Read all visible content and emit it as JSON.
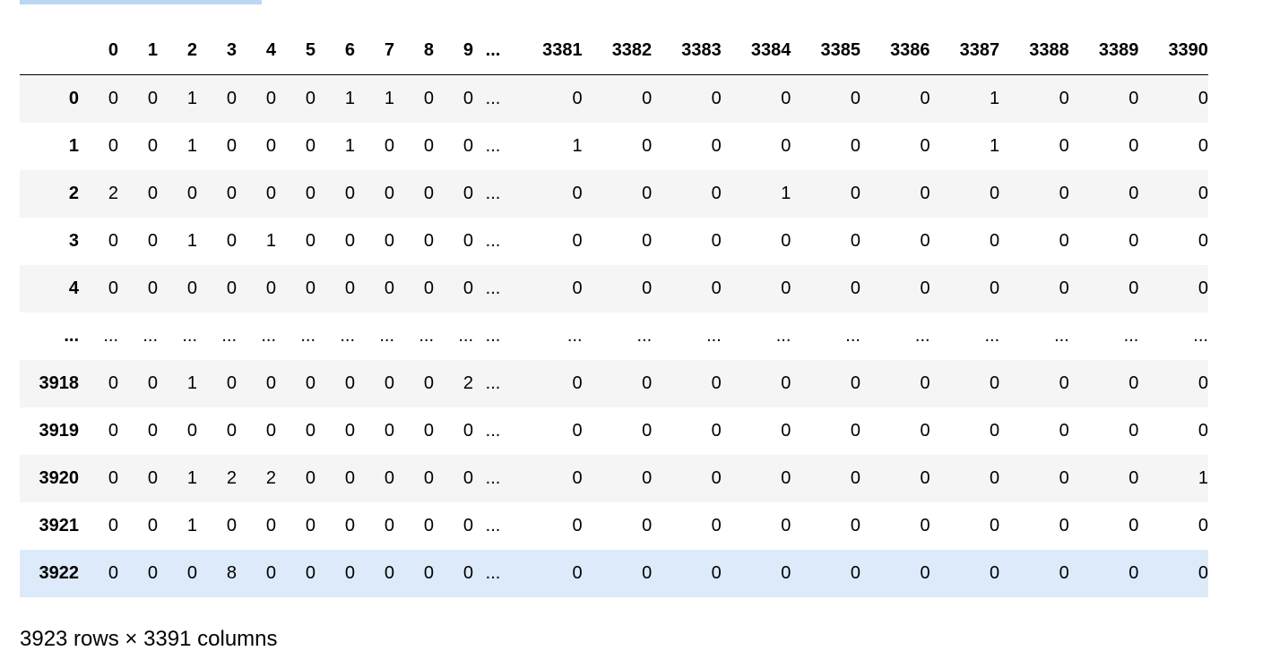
{
  "table": {
    "columns": [
      "0",
      "1",
      "2",
      "3",
      "4",
      "5",
      "6",
      "7",
      "8",
      "9",
      "...",
      "3381",
      "3382",
      "3383",
      "3384",
      "3385",
      "3386",
      "3387",
      "3388",
      "3389",
      "3390"
    ],
    "rows": [
      {
        "index": "0",
        "values": [
          "0",
          "0",
          "1",
          "0",
          "0",
          "0",
          "1",
          "1",
          "0",
          "0",
          "...",
          "0",
          "0",
          "0",
          "0",
          "0",
          "0",
          "1",
          "0",
          "0",
          "0"
        ]
      },
      {
        "index": "1",
        "values": [
          "0",
          "0",
          "1",
          "0",
          "0",
          "0",
          "1",
          "0",
          "0",
          "0",
          "...",
          "1",
          "0",
          "0",
          "0",
          "0",
          "0",
          "1",
          "0",
          "0",
          "0"
        ]
      },
      {
        "index": "2",
        "values": [
          "2",
          "0",
          "0",
          "0",
          "0",
          "0",
          "0",
          "0",
          "0",
          "0",
          "...",
          "0",
          "0",
          "0",
          "1",
          "0",
          "0",
          "0",
          "0",
          "0",
          "0"
        ]
      },
      {
        "index": "3",
        "values": [
          "0",
          "0",
          "1",
          "0",
          "1",
          "0",
          "0",
          "0",
          "0",
          "0",
          "...",
          "0",
          "0",
          "0",
          "0",
          "0",
          "0",
          "0",
          "0",
          "0",
          "0"
        ]
      },
      {
        "index": "4",
        "values": [
          "0",
          "0",
          "0",
          "0",
          "0",
          "0",
          "0",
          "0",
          "0",
          "0",
          "...",
          "0",
          "0",
          "0",
          "0",
          "0",
          "0",
          "0",
          "0",
          "0",
          "0"
        ]
      },
      {
        "index": "...",
        "values": [
          "...",
          "...",
          "...",
          "...",
          "...",
          "...",
          "...",
          "...",
          "...",
          "...",
          "...",
          "...",
          "...",
          "...",
          "...",
          "...",
          "...",
          "...",
          "...",
          "...",
          "..."
        ]
      },
      {
        "index": "3918",
        "values": [
          "0",
          "0",
          "1",
          "0",
          "0",
          "0",
          "0",
          "0",
          "0",
          "2",
          "...",
          "0",
          "0",
          "0",
          "0",
          "0",
          "0",
          "0",
          "0",
          "0",
          "0"
        ]
      },
      {
        "index": "3919",
        "values": [
          "0",
          "0",
          "0",
          "0",
          "0",
          "0",
          "0",
          "0",
          "0",
          "0",
          "...",
          "0",
          "0",
          "0",
          "0",
          "0",
          "0",
          "0",
          "0",
          "0",
          "0"
        ]
      },
      {
        "index": "3920",
        "values": [
          "0",
          "0",
          "1",
          "2",
          "2",
          "0",
          "0",
          "0",
          "0",
          "0",
          "...",
          "0",
          "0",
          "0",
          "0",
          "0",
          "0",
          "0",
          "0",
          "0",
          "1"
        ]
      },
      {
        "index": "3921",
        "values": [
          "0",
          "0",
          "1",
          "0",
          "0",
          "0",
          "0",
          "0",
          "0",
          "0",
          "...",
          "0",
          "0",
          "0",
          "0",
          "0",
          "0",
          "0",
          "0",
          "0",
          "0"
        ]
      },
      {
        "index": "3922",
        "values": [
          "0",
          "0",
          "0",
          "8",
          "0",
          "0",
          "0",
          "0",
          "0",
          "0",
          "...",
          "0",
          "0",
          "0",
          "0",
          "0",
          "0",
          "0",
          "0",
          "0",
          "0"
        ]
      }
    ],
    "selected_row": "3922",
    "shape_text": "3923 rows × 3391 columns"
  },
  "colors": {
    "row_striped": "#f5f5f5",
    "row_selected": "#ddeafa",
    "top_bar": "#bbd7f3"
  }
}
